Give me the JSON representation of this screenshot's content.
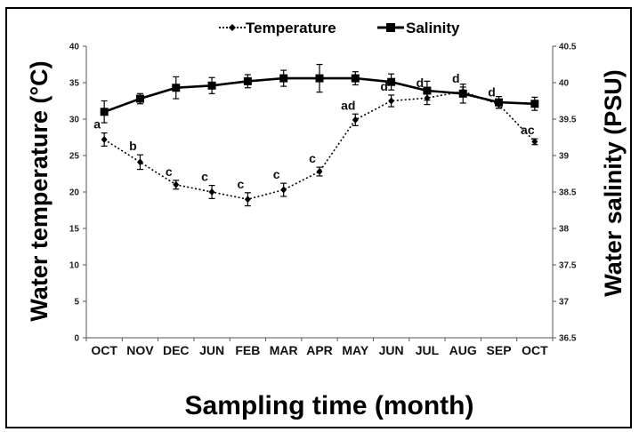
{
  "chart_data": {
    "type": "line",
    "categories": [
      "OCT",
      "NOV",
      "DEC",
      "JUN",
      "FEB",
      "MAR",
      "APR",
      "MAY",
      "JUN",
      "JUL",
      "AUG",
      "SEP",
      "OCT"
    ],
    "xlabel": "Sampling time (month)",
    "ylabel": "Water temperature (°C)",
    "y2label": "Water salinity (PSU)",
    "ylim": [
      0,
      40
    ],
    "y2lim": [
      36.5,
      40.5
    ],
    "yticks": [
      "0",
      "5",
      "10",
      "15",
      "20",
      "25",
      "30",
      "35",
      "40"
    ],
    "y2ticks": [
      "36.5",
      "37",
      "37.5",
      "38",
      "38.5",
      "39",
      "39.5",
      "40",
      "40.5"
    ],
    "grid": false,
    "legend_position": "top-center",
    "series": [
      {
        "name": "Temperature",
        "axis": "left",
        "style": "dotted",
        "marker": "diamond",
        "color": "#000000",
        "values": [
          27.2,
          24.1,
          21.0,
          20.0,
          19.0,
          20.3,
          22.8,
          29.9,
          32.5,
          32.9,
          33.8,
          32.0,
          26.9
        ],
        "errors": [
          0.9,
          1.0,
          0.6,
          0.9,
          0.9,
          0.9,
          0.6,
          0.8,
          0.8,
          0.9,
          0.6,
          0.5,
          0.4
        ],
        "labels": [
          "a",
          "b",
          "c",
          "c",
          "c",
          "c",
          "c",
          "ad",
          "d",
          "d",
          "d",
          "d",
          "ac"
        ]
      },
      {
        "name": "Salinity",
        "axis": "right",
        "style": "solid",
        "marker": "square",
        "color": "#000000",
        "values": [
          39.6,
          39.78,
          39.93,
          39.96,
          40.02,
          40.06,
          40.06,
          40.06,
          40.01,
          39.89,
          39.85,
          39.73,
          39.71
        ],
        "errors": [
          0.15,
          0.07,
          0.15,
          0.11,
          0.09,
          0.11,
          0.19,
          0.09,
          0.11,
          0.13,
          0.13,
          0.08,
          0.09
        ]
      }
    ]
  }
}
